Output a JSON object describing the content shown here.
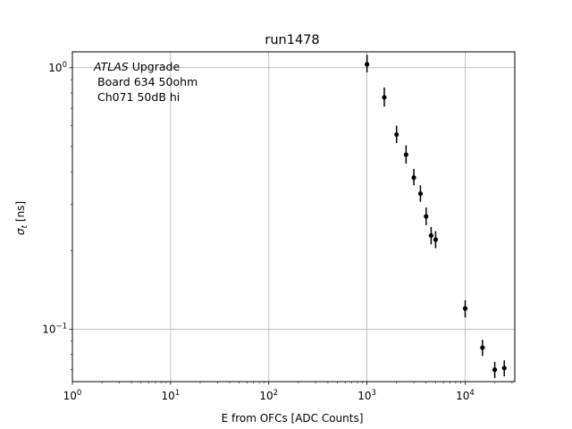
{
  "chart_data": {
    "type": "scatter",
    "title": "run1478",
    "xlabel": "E from OFCs [ADC Counts]",
    "ylabel": "σt [ns]",
    "xscale": "log",
    "yscale": "log",
    "xlim": [
      1,
      32000
    ],
    "ylim": [
      0.063,
      1.15
    ],
    "grid": true,
    "x_ticks": [
      {
        "value": 1,
        "base": "10",
        "exp": "0"
      },
      {
        "value": 10,
        "base": "10",
        "exp": "1"
      },
      {
        "value": 100,
        "base": "10",
        "exp": "2"
      },
      {
        "value": 1000,
        "base": "10",
        "exp": "3"
      },
      {
        "value": 10000,
        "base": "10",
        "exp": "4"
      }
    ],
    "y_ticks": [
      {
        "value": 0.1,
        "base": "10",
        "exp": "−1"
      },
      {
        "value": 1,
        "base": "10",
        "exp": "0"
      }
    ],
    "annotation": {
      "line1_italic": "ATLAS",
      "line1_rest": " Upgrade",
      "line2": "Board 634 50ohm",
      "line3": "Ch071 50dB hi"
    },
    "points": [
      {
        "x": 1000,
        "y": 1.03,
        "yerr_low": 0.07,
        "yerr_high": 0.09
      },
      {
        "x": 1500,
        "y": 0.77,
        "yerr_low": 0.06,
        "yerr_high": 0.07
      },
      {
        "x": 2000,
        "y": 0.555,
        "yerr_low": 0.04,
        "yerr_high": 0.045
      },
      {
        "x": 2500,
        "y": 0.465,
        "yerr_low": 0.035,
        "yerr_high": 0.04
      },
      {
        "x": 3000,
        "y": 0.38,
        "yerr_low": 0.025,
        "yerr_high": 0.03
      },
      {
        "x": 3500,
        "y": 0.33,
        "yerr_low": 0.023,
        "yerr_high": 0.025
      },
      {
        "x": 4000,
        "y": 0.27,
        "yerr_low": 0.02,
        "yerr_high": 0.022
      },
      {
        "x": 4500,
        "y": 0.228,
        "yerr_low": 0.017,
        "yerr_high": 0.018
      },
      {
        "x": 5000,
        "y": 0.22,
        "yerr_low": 0.016,
        "yerr_high": 0.017
      },
      {
        "x": 10000,
        "y": 0.12,
        "yerr_low": 0.009,
        "yerr_high": 0.009
      },
      {
        "x": 15000,
        "y": 0.085,
        "yerr_low": 0.006,
        "yerr_high": 0.006
      },
      {
        "x": 20000,
        "y": 0.07,
        "yerr_low": 0.005,
        "yerr_high": 0.005
      },
      {
        "x": 25000,
        "y": 0.071,
        "yerr_low": 0.005,
        "yerr_high": 0.005
      }
    ],
    "marker_color": "#000000",
    "grid_color": "#b0b0b0"
  }
}
